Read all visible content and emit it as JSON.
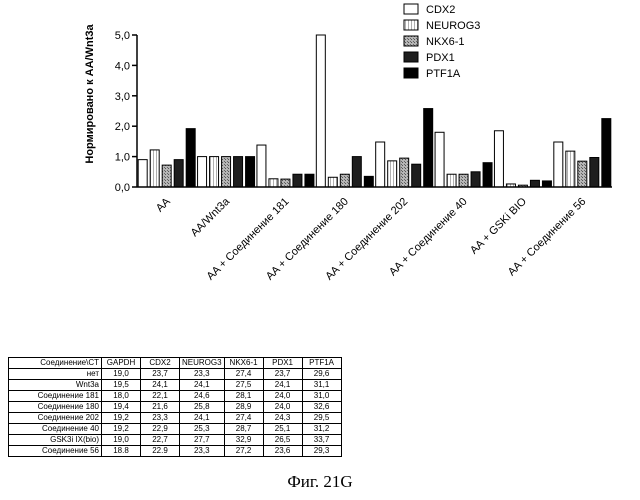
{
  "chart_data": {
    "type": "bar",
    "ylabel": "Нормировано к AA/Wnt3a",
    "ylim": [
      0,
      5
    ],
    "yticks": [
      "0,0",
      "1,0",
      "2,0",
      "3,0",
      "4,0",
      "5,0"
    ],
    "categories": [
      "AA",
      "AA/Wnt3a",
      "AA + Соединение 181",
      "AA + Соединение 180",
      "AA + Соединение 202",
      "AA + Соединение 40",
      "AA + GSKi BIO",
      "AA + Соединение 56"
    ],
    "series": [
      {
        "name": "CDX2",
        "color": "#ffffff",
        "values": [
          0.9,
          1.0,
          1.38,
          5.0,
          1.48,
          1.8,
          1.85,
          1.48
        ]
      },
      {
        "name": "NEUROG3",
        "color": "#ffffff",
        "values": [
          1.22,
          1.0,
          0.27,
          0.32,
          0.86,
          0.42,
          0.1,
          1.18
        ]
      },
      {
        "name": "NKX6-1",
        "color": "#9a9a9a",
        "values": [
          0.72,
          1.0,
          0.26,
          0.42,
          0.95,
          0.42,
          0.06,
          0.85
        ]
      },
      {
        "name": "PDX1",
        "color": "#202020",
        "values": [
          0.9,
          1.0,
          0.42,
          1.0,
          0.75,
          0.5,
          0.22,
          0.97
        ]
      },
      {
        "name": "PTF1A",
        "color": "#000000",
        "values": [
          1.92,
          1.0,
          0.42,
          0.35,
          2.58,
          0.8,
          0.2,
          2.25
        ]
      }
    ],
    "legend_position": "top-right",
    "grid": false
  },
  "table": {
    "header": [
      "Соединение\\CT",
      "GAPDH",
      "CDX2",
      "NEUROG3",
      "NKX6-1",
      "PDX1",
      "PTF1A"
    ],
    "rows": [
      [
        "нет",
        "19,0",
        "23,7",
        "23,3",
        "27,4",
        "23,7",
        "29,6"
      ],
      [
        "Wnt3a",
        "19,5",
        "24,1",
        "24,1",
        "27,5",
        "24,1",
        "31,1"
      ],
      [
        "Соединение 181",
        "18,0",
        "22,1",
        "24,6",
        "28,1",
        "24,0",
        "31,0"
      ],
      [
        "Соединение 180",
        "19,4",
        "21,6",
        "25,8",
        "28,9",
        "24,0",
        "32,6"
      ],
      [
        "Соединение 202",
        "19,2",
        "23,3",
        "24,1",
        "27,4",
        "24,3",
        "29,5"
      ],
      [
        "Соединение 40",
        "19,2",
        "22,9",
        "25,3",
        "28,7",
        "25,1",
        "31,2"
      ],
      [
        "GSK3i IX(bio)",
        "19,0",
        "22,7",
        "27,7",
        "32,9",
        "26,5",
        "33,7"
      ],
      [
        "Соединение 56",
        "18.8",
        "22.9",
        "23,3",
        "27,2",
        "23,6",
        "29,3"
      ]
    ]
  },
  "caption": "Фиг. 21G"
}
